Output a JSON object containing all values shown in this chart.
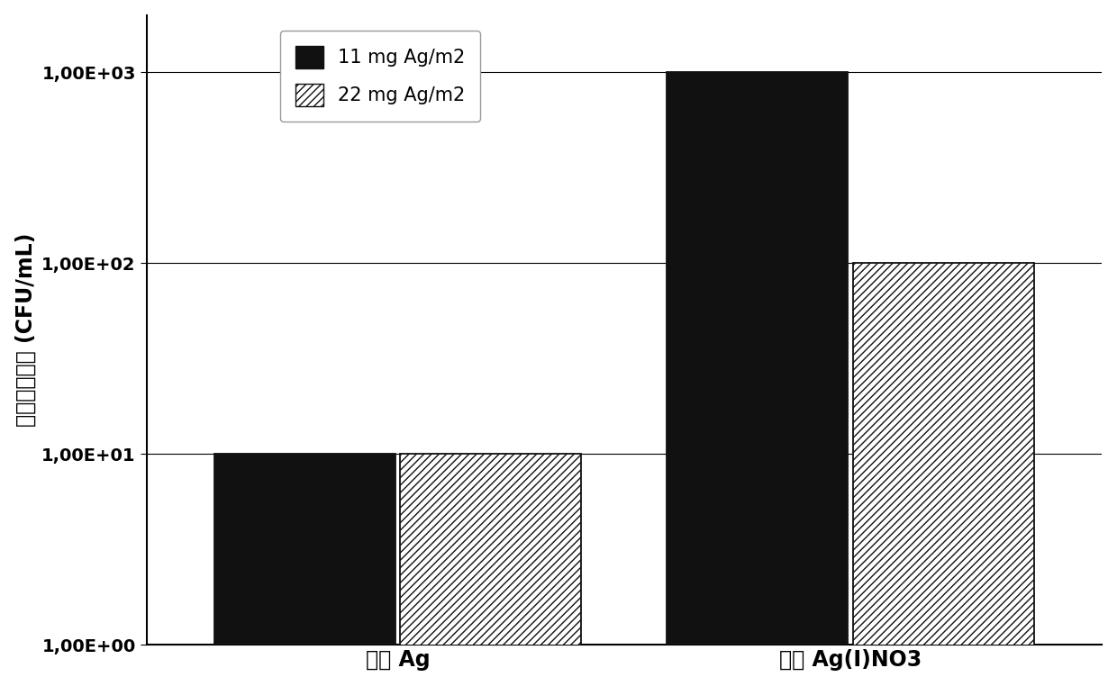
{
  "categories": [
    "纳米 Ag",
    "对照 Ag(I)NO3"
  ],
  "series": [
    {
      "label": "11 mg Ag/m2",
      "values": [
        10,
        1000
      ],
      "facecolor": "#111111",
      "hatch": ""
    },
    {
      "label": "22 mg Ag/m2",
      "values": [
        10,
        100
      ],
      "facecolor": "#ffffff",
      "hatch": "////"
    }
  ],
  "ylabel": "大肠杆菌浓度 (CFU/mL)",
  "ytick_labels": [
    "1,00E+00",
    "1,00E+01",
    "1,00E+02",
    "1,00E+03"
  ],
  "ytick_values": [
    1,
    10,
    100,
    1000
  ],
  "background_color": "#ffffff",
  "bar_width": 0.18,
  "group_centers": [
    0.3,
    0.75
  ],
  "xlim": [
    0.05,
    1.0
  ],
  "ylim_min": 1,
  "ylim_max": 2000,
  "legend_fontsize": 15,
  "ylabel_fontsize": 17,
  "tick_fontsize": 14,
  "xtick_fontsize": 17
}
